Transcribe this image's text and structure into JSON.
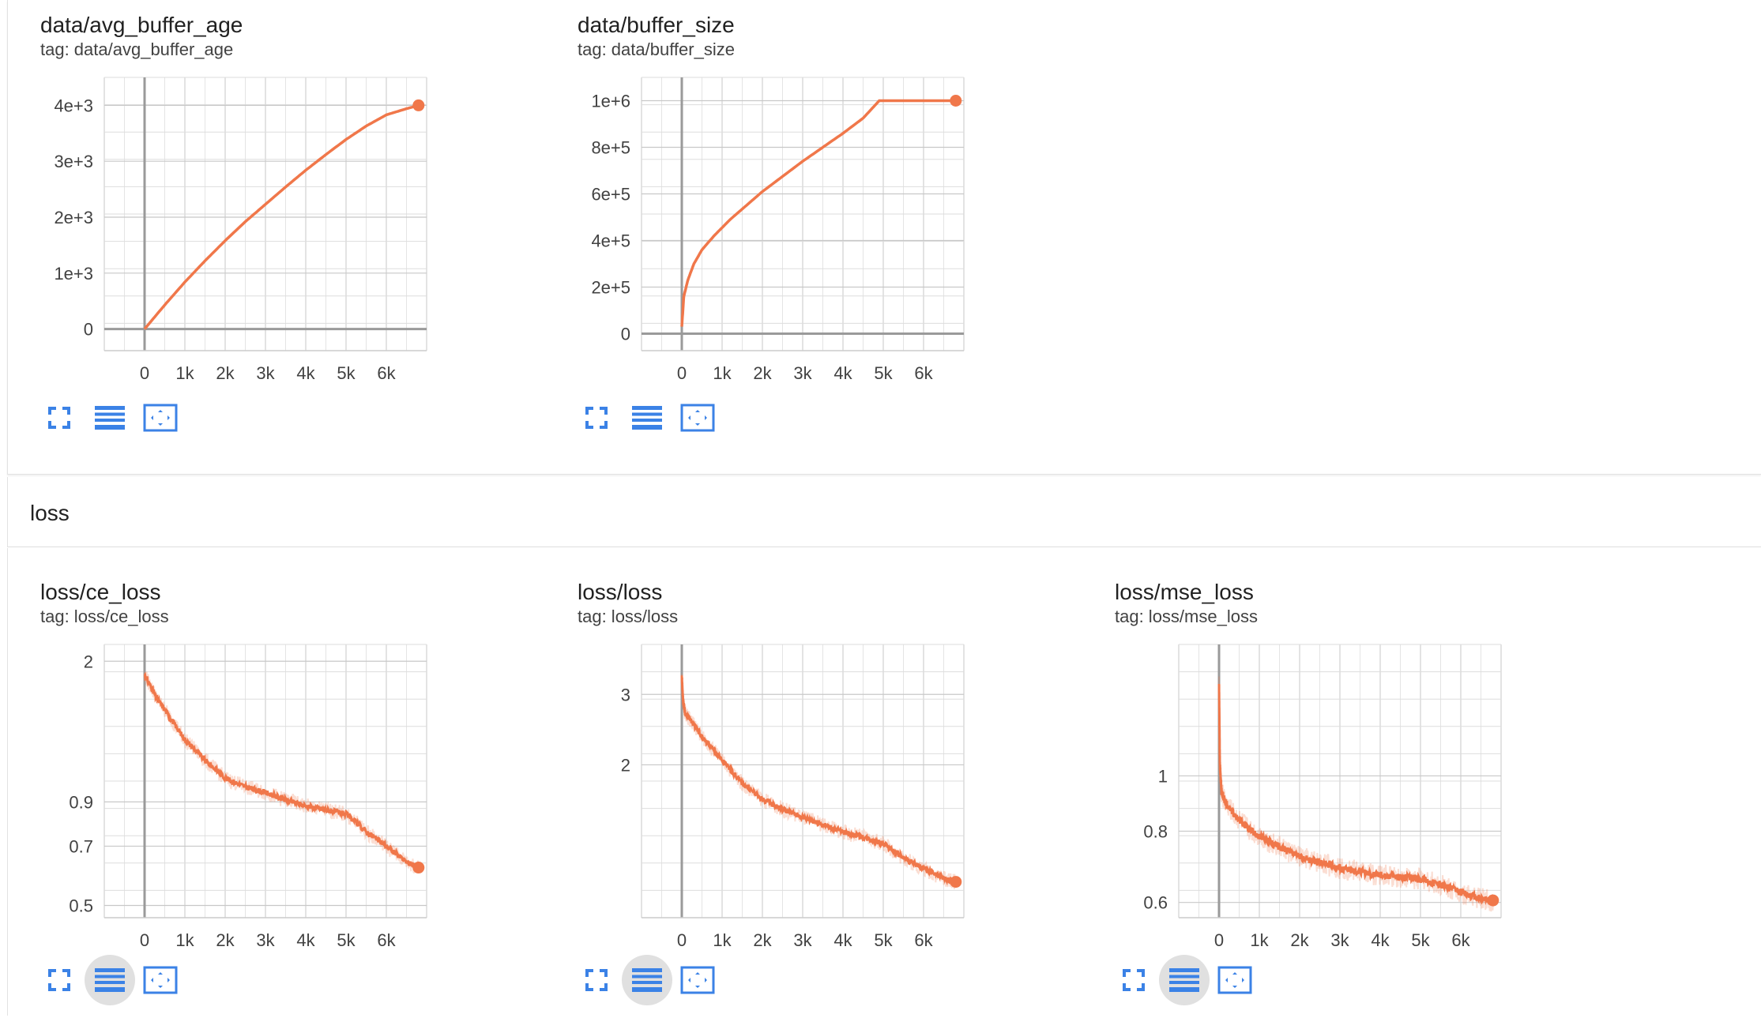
{
  "groups": {
    "top": {
      "name": ""
    },
    "loss": {
      "name": "loss"
    }
  },
  "charts": [
    {
      "id": "avg_buffer_age",
      "title": "data/avg_buffer_age",
      "tag": "tag: data/avg_buffer_age",
      "color": "#f0774a",
      "toolbar_active": false,
      "chart_data": {
        "type": "line",
        "xlim": [
          -1000,
          7000
        ],
        "ylim": [
          -500,
          4500
        ],
        "x_ticks": [
          0,
          1000,
          2000,
          3000,
          4000,
          5000,
          6000
        ],
        "x_tick_labels": [
          "0",
          "1k",
          "2k",
          "3k",
          "4k",
          "5k",
          "6k"
        ],
        "y_ticks": [
          0,
          1000,
          2000,
          3000,
          4000
        ],
        "y_tick_labels": [
          "0",
          "1e+3",
          "2e+3",
          "3e+3",
          "4e+3"
        ],
        "log_y": false,
        "series": [
          {
            "x": [
              0,
              500,
              1000,
              1500,
              2000,
              2500,
              3000,
              3500,
              4000,
              4500,
              5000,
              5500,
              6000,
              6500,
              6800
            ],
            "y": [
              0,
              430,
              840,
              1220,
              1580,
              1920,
              2230,
              2540,
              2840,
              3120,
              3390,
              3630,
              3830,
              3940,
              4000
            ],
            "noisy": false
          }
        ],
        "end_point": {
          "x": 6800,
          "y": 4000
        }
      }
    },
    {
      "id": "buffer_size",
      "title": "data/buffer_size",
      "tag": "tag: data/buffer_size",
      "color": "#f0774a",
      "toolbar_active": false,
      "chart_data": {
        "type": "line",
        "xlim": [
          -1000,
          7000
        ],
        "ylim": [
          -100000,
          1100000
        ],
        "x_ticks": [
          0,
          1000,
          2000,
          3000,
          4000,
          5000,
          6000
        ],
        "x_tick_labels": [
          "0",
          "1k",
          "2k",
          "3k",
          "4k",
          "5k",
          "6k"
        ],
        "y_ticks": [
          0,
          200000,
          400000,
          600000,
          800000,
          1000000
        ],
        "y_tick_labels": [
          "0",
          "2e+5",
          "4e+5",
          "6e+5",
          "8e+5",
          "1e+6"
        ],
        "log_y": false,
        "series": [
          {
            "x": [
              0,
              50,
              150,
              300,
              500,
              800,
              1200,
              1600,
              2000,
              2500,
              3000,
              3500,
              4000,
              4500,
              4900,
              5500,
              6000,
              6500,
              6800
            ],
            "y": [
              30000,
              160000,
              230000,
              300000,
              360000,
              420000,
              490000,
              550000,
              610000,
              675000,
              740000,
              800000,
              860000,
              925000,
              1000000,
              1000000,
              1000000,
              1000000,
              1000000
            ],
            "noisy": false
          }
        ],
        "end_point": {
          "x": 6800,
          "y": 1000000
        }
      }
    },
    {
      "id": "ce_loss",
      "title": "loss/ce_loss",
      "tag": "tag: loss/ce_loss",
      "color": "#f0774a",
      "toolbar_active": true,
      "chart_data": {
        "type": "line",
        "xlim": [
          -1000,
          7000
        ],
        "ylim": [
          0.45,
          2.2
        ],
        "x_ticks": [
          0,
          1000,
          2000,
          3000,
          4000,
          5000,
          6000
        ],
        "x_tick_labels": [
          "0",
          "1k",
          "2k",
          "3k",
          "4k",
          "5k",
          "6k"
        ],
        "y_ticks": [
          2,
          0.9,
          0.7,
          0.5
        ],
        "y_tick_labels": [
          "2",
          "0.9",
          "0.7",
          "0.5"
        ],
        "log_y": true,
        "series": [
          {
            "x": [
              0,
              300,
              700,
              1000,
              1500,
              2000,
              2500,
              3000,
              3500,
              4000,
              4500,
              5000,
              5500,
              6000,
              6500,
              6800
            ],
            "y": [
              1.85,
              1.62,
              1.42,
              1.28,
              1.14,
              1.03,
              0.98,
              0.95,
              0.91,
              0.88,
              0.86,
              0.84,
              0.76,
              0.7,
              0.64,
              0.62
            ],
            "noisy": true
          }
        ],
        "end_point": {
          "x": 6800,
          "y": 0.62
        }
      }
    },
    {
      "id": "loss",
      "title": "loss/loss",
      "tag": "tag: loss/loss",
      "color": "#f0774a",
      "toolbar_active": true,
      "chart_data": {
        "type": "line",
        "xlim": [
          -1000,
          7000
        ],
        "ylim": [
          0.8,
          4
        ],
        "x_ticks": [
          0,
          1000,
          2000,
          3000,
          4000,
          5000,
          6000
        ],
        "x_tick_labels": [
          "0",
          "1k",
          "2k",
          "3k",
          "4k",
          "5k",
          "6k"
        ],
        "y_ticks": [
          3,
          2
        ],
        "y_tick_labels": [
          "3",
          "2"
        ],
        "log_y": true,
        "series": [
          {
            "x": [
              0,
              30,
              80,
              200,
              500,
              1000,
              1500,
              2000,
              2500,
              3000,
              3500,
              4000,
              4500,
              5000,
              5500,
              6000,
              6500,
              6800
            ],
            "y": [
              3.3,
              2.9,
              2.7,
              2.6,
              2.35,
              2.05,
              1.8,
              1.64,
              1.55,
              1.48,
              1.42,
              1.36,
              1.32,
              1.27,
              1.17,
              1.1,
              1.04,
              1.02
            ],
            "noisy": true
          }
        ],
        "end_point": {
          "x": 6800,
          "y": 1.02
        }
      }
    },
    {
      "id": "mse_loss",
      "title": "loss/mse_loss",
      "tag": "tag: loss/mse_loss",
      "color": "#f0774a",
      "toolbar_active": true,
      "chart_data": {
        "type": "line",
        "xlim": [
          -1000,
          7000
        ],
        "ylim": [
          0.55,
          1.7
        ],
        "x_ticks": [
          0,
          1000,
          2000,
          3000,
          4000,
          5000,
          6000
        ],
        "x_tick_labels": [
          "0",
          "1k",
          "2k",
          "3k",
          "4k",
          "5k",
          "6k"
        ],
        "y_ticks": [
          1,
          0.8,
          0.6
        ],
        "y_tick_labels": [
          "1",
          "0.8",
          "0.6"
        ],
        "log_y": true,
        "series": [
          {
            "x": [
              0,
              20,
              60,
              150,
              400,
              800,
              1200,
              1600,
              2000,
              2500,
              3000,
              3500,
              4000,
              4500,
              5000,
              5500,
              6000,
              6500,
              6800
            ],
            "y": [
              1.45,
              1.05,
              0.94,
              0.9,
              0.85,
              0.8,
              0.77,
              0.745,
              0.72,
              0.705,
              0.69,
              0.68,
              0.67,
              0.665,
              0.66,
              0.645,
              0.625,
              0.61,
              0.605
            ],
            "noisy": true
          }
        ],
        "end_point": {
          "x": 6800,
          "y": 0.605
        }
      }
    }
  ],
  "toolbar": {
    "icons": [
      "fullscreen-icon",
      "data-table-icon",
      "fit-domain-icon"
    ]
  }
}
